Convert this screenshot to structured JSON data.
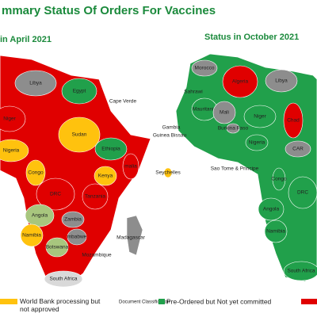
{
  "header": {
    "title": "mmary Status Of Orders For Vaccines"
  },
  "status_colors": {
    "ordered": "#e00000",
    "preordered": "#21a04b",
    "processing": "#ffc20e",
    "classification": "#8d8d8d",
    "partial": "#a8c67e",
    "none": "#d9d9d9"
  },
  "maps": [
    {
      "title": "in April 2021",
      "countries": [
        {
          "label": "Libya",
          "status": "classification"
        },
        {
          "label": "Egypt",
          "status": "preordered"
        },
        {
          "label": "Niger",
          "status": "ordered"
        },
        {
          "label": "Nigeria",
          "status": "processing"
        },
        {
          "label": "Sudan",
          "status": "processing"
        },
        {
          "label": "Ethiopia",
          "status": "preordered"
        },
        {
          "label": "malia",
          "status": "ordered"
        },
        {
          "label": "Kenya",
          "status": "processing"
        },
        {
          "label": "Congo",
          "status": "processing"
        },
        {
          "label": "DRC",
          "status": "ordered"
        },
        {
          "label": "Tanzania",
          "status": "ordered"
        },
        {
          "label": "Angola",
          "status": "partial"
        },
        {
          "label": "Zambia",
          "status": "classification"
        },
        {
          "label": "Namibia",
          "status": "processing"
        },
        {
          "label": "mbabwe",
          "status": "classification"
        },
        {
          "label": "Botswana",
          "status": "partial"
        },
        {
          "label": "Mozambique",
          "status": "none"
        },
        {
          "label": "Madagascar",
          "status": "classification"
        },
        {
          "label": "South Africa",
          "status": "none"
        },
        {
          "label": "Cape Verde",
          "status": "none"
        },
        {
          "label": "Seychelles",
          "status": "processing"
        }
      ]
    },
    {
      "title": "Status in October 2021",
      "countries": [
        {
          "label": "Morocco",
          "status": "classification"
        },
        {
          "label": "Sahrawi",
          "status": "none"
        },
        {
          "label": "Algeria",
          "status": "ordered"
        },
        {
          "label": "Libya",
          "status": "classification"
        },
        {
          "label": "Mauritania",
          "status": "preordered"
        },
        {
          "label": "Mali",
          "status": "classification"
        },
        {
          "label": "Niger",
          "status": "preordered"
        },
        {
          "label": "Chad",
          "status": "ordered"
        },
        {
          "label": "Gambia",
          "status": "none"
        },
        {
          "label": "Guinea Bissau",
          "status": "none"
        },
        {
          "label": "Burkina Faso",
          "status": "classification"
        },
        {
          "label": "Nigeria",
          "status": "preordered"
        },
        {
          "label": "CAR",
          "status": "classification"
        },
        {
          "label": "Sao Tome & Principe",
          "status": "none"
        },
        {
          "label": "Congo",
          "status": "preordered"
        },
        {
          "label": "DRC",
          "status": "preordered"
        },
        {
          "label": "Angola",
          "status": "preordered"
        },
        {
          "label": "Namibia",
          "status": "preordered"
        },
        {
          "label": "South Africa",
          "status": "preordered"
        }
      ]
    }
  ],
  "legend": [
    {
      "label": "World Bank processing but not approved",
      "status": "processing"
    },
    {
      "label": "Document Classification",
      "status": "classification"
    },
    {
      "label": "Pre-Ordered but Not yet committed",
      "status": "preordered"
    },
    {
      "status": "ordered"
    }
  ]
}
